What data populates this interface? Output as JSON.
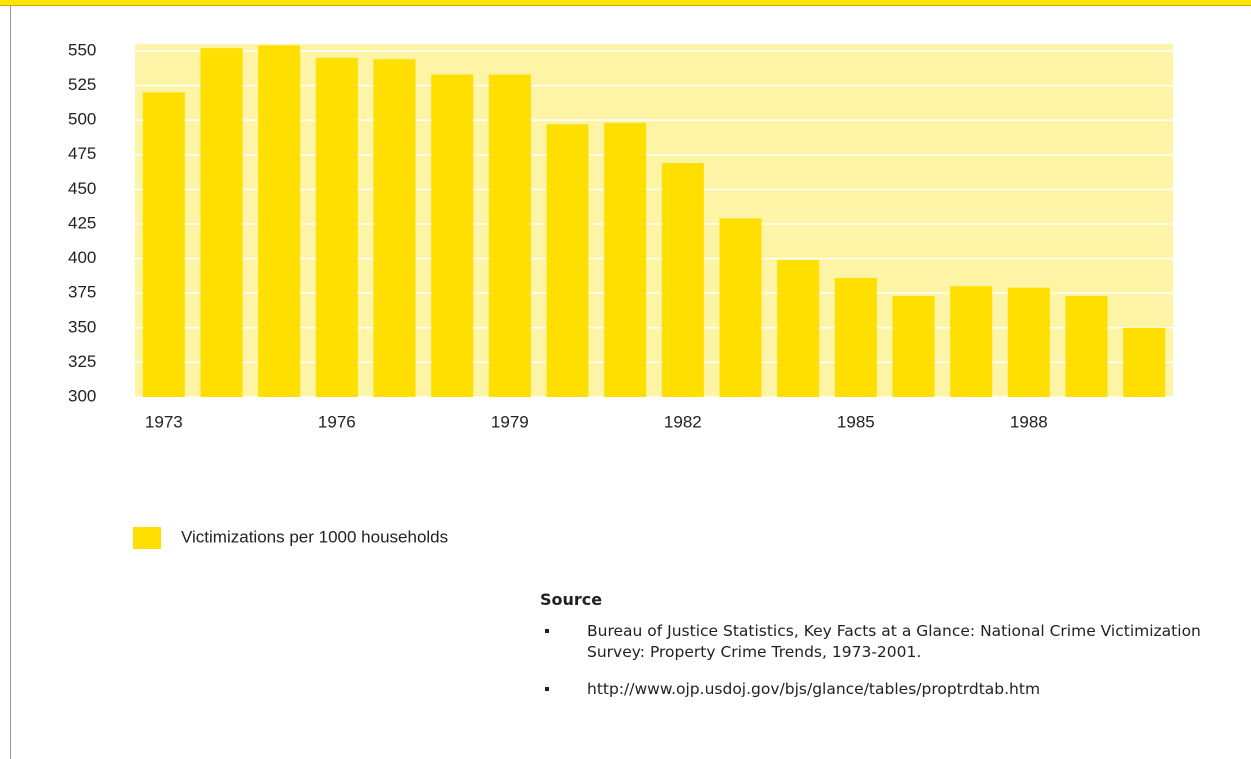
{
  "chart_data": {
    "type": "bar",
    "categories": [
      "1973",
      null,
      null,
      "1976",
      null,
      null,
      "1979",
      null,
      null,
      "1982",
      null,
      null,
      "1985",
      null,
      null,
      "1988",
      null,
      null
    ],
    "series": [
      {
        "name": "Victimizations per 1000 households",
        "color": "#ffdf00",
        "values": [
          520,
          552,
          554,
          545,
          544,
          533,
          533,
          497,
          498,
          469,
          429,
          399,
          386,
          373,
          380,
          379,
          373,
          350
        ]
      }
    ],
    "ylim": [
      300,
      555
    ],
    "yticks": [
      300,
      325,
      350,
      375,
      400,
      425,
      450,
      475,
      500,
      525,
      550
    ],
    "grid": true
  },
  "source": {
    "heading": "Source",
    "items": [
      "Bureau of Justice Statistics, Key Facts at a Glance:  National Crime Victimization Survey:  Property Crime Trends, 1973-2001.",
      "http://www.ojp.usdoj.gov/bjs/glance/tables/proptrdtab.htm"
    ]
  }
}
